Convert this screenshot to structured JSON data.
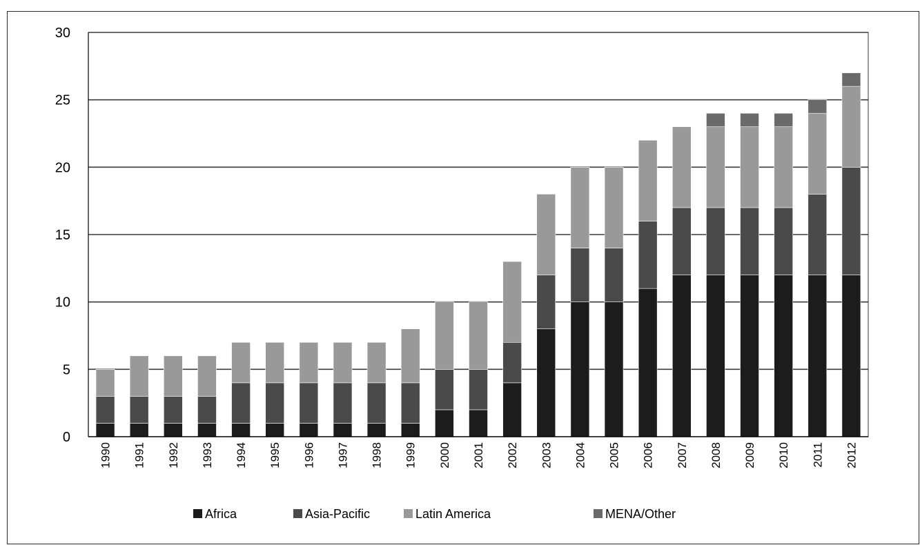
{
  "chart_data": {
    "type": "bar",
    "stacked": true,
    "title": "",
    "xlabel": "",
    "ylabel": "",
    "ylim": [
      0,
      30
    ],
    "yticks": [
      0,
      5,
      10,
      15,
      20,
      25,
      30
    ],
    "grid": true,
    "legend_position": "bottom",
    "categories": [
      "1990",
      "1991",
      "1992",
      "1993",
      "1994",
      "1995",
      "1996",
      "1997",
      "1998",
      "1999",
      "2000",
      "2001",
      "2002",
      "2003",
      "2004",
      "2005",
      "2006",
      "2007",
      "2008",
      "2009",
      "2010",
      "2011",
      "2012"
    ],
    "series": [
      {
        "name": "Africa",
        "color": "#1c1c1c",
        "values": [
          1,
          1,
          1,
          1,
          1,
          1,
          1,
          1,
          1,
          1,
          2,
          2,
          4,
          8,
          10,
          10,
          11,
          12,
          12,
          12,
          12,
          12,
          12
        ]
      },
      {
        "name": "Asia-Pacific",
        "color": "#4a4a4a",
        "values": [
          2,
          2,
          2,
          2,
          3,
          3,
          3,
          3,
          3,
          3,
          3,
          3,
          3,
          4,
          4,
          4,
          5,
          5,
          5,
          5,
          5,
          6,
          8
        ]
      },
      {
        "name": "Latin America",
        "color": "#999999",
        "values": [
          2,
          3,
          3,
          3,
          3,
          3,
          3,
          3,
          3,
          4,
          5,
          5,
          6,
          6,
          6,
          6,
          6,
          6,
          6,
          6,
          6,
          6,
          6
        ]
      },
      {
        "name": "MENA/Other",
        "color": "#6a6a6a",
        "values": [
          0,
          0,
          0,
          0,
          0,
          0,
          0,
          0,
          0,
          0,
          0,
          0,
          0,
          0,
          0,
          0,
          0,
          0,
          1,
          1,
          1,
          1,
          1
        ]
      }
    ]
  }
}
